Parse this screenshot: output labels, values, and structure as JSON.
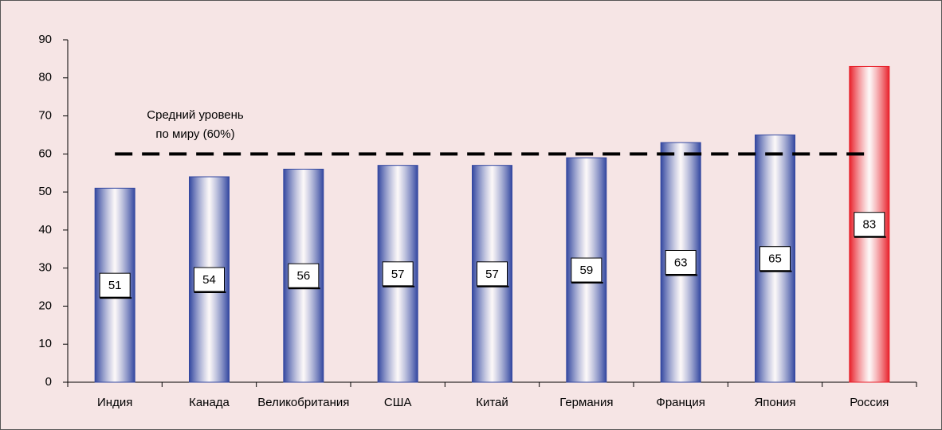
{
  "chart_data": {
    "type": "bar",
    "categories": [
      "Индия",
      "Канада",
      "Великобритания",
      "США",
      "Китай",
      "Германия",
      "Франция",
      "Япония",
      "Россия"
    ],
    "values": [
      51,
      54,
      56,
      57,
      57,
      59,
      63,
      65,
      83
    ],
    "colors": [
      "#3347a0",
      "#3347a0",
      "#3347a0",
      "#3347a0",
      "#3347a0",
      "#3347a0",
      "#3347a0",
      "#3347a0",
      "#e8202a"
    ],
    "ylim": [
      0,
      90
    ],
    "yticks": [
      0,
      10,
      20,
      30,
      40,
      50,
      60,
      70,
      80,
      90
    ],
    "reference_line": {
      "value": 60,
      "label": [
        "Средний уровень",
        "по миру (60%)"
      ]
    }
  }
}
